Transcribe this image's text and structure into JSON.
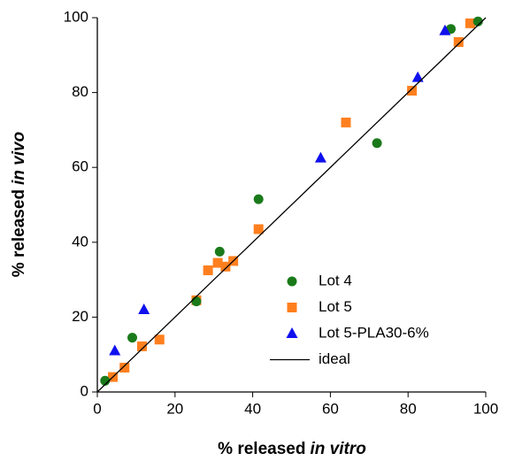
{
  "chart_data": {
    "type": "scatter",
    "xlabel": [
      "% released",
      "in vitro"
    ],
    "ylabel": [
      "% released",
      "in vivo"
    ],
    "xlim": [
      0,
      100
    ],
    "ylim": [
      0,
      100
    ],
    "xticks": [
      0,
      20,
      40,
      60,
      80,
      100
    ],
    "yticks": [
      0,
      20,
      40,
      60,
      80,
      100
    ],
    "legend": "lower right",
    "series": [
      {
        "name": "Lot 4",
        "color": "#1a7a1a",
        "marker": "circle",
        "x": [
          2,
          9,
          25.5,
          31.5,
          41.5,
          72,
          91,
          98
        ],
        "values": [
          3,
          14.5,
          24.2,
          37.5,
          51.5,
          66.5,
          97,
          99
        ]
      },
      {
        "name": "Lot 5",
        "color": "#ff7f1e",
        "marker": "square",
        "x": [
          4,
          7,
          11.5,
          16,
          25.5,
          28.5,
          31,
          33,
          35,
          41.5,
          64,
          81,
          93,
          96
        ],
        "values": [
          4,
          6.5,
          12.2,
          14,
          24.5,
          32.5,
          34.5,
          33.5,
          35,
          43.5,
          72,
          80.5,
          93.5,
          98.5
        ]
      },
      {
        "name": "Lot 5-PLA30-6%",
        "color": "#1010ee",
        "marker": "triangle",
        "x": [
          4.5,
          12,
          57.5,
          82.5,
          89.5
        ],
        "values": [
          11,
          22,
          62.5,
          84,
          96.5
        ]
      },
      {
        "name": "ideal",
        "color": "#000000",
        "marker": "line",
        "x": [
          0,
          100
        ],
        "values": [
          0,
          100
        ]
      }
    ]
  }
}
